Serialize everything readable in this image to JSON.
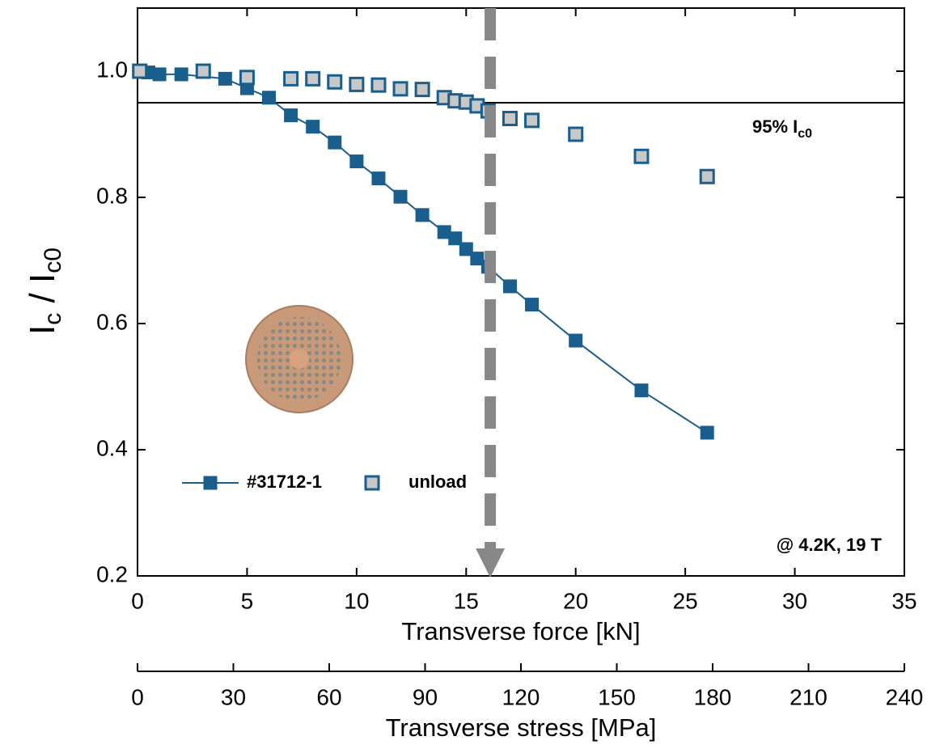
{
  "chart_data": {
    "type": "scatter",
    "x_label": "Transverse force [kN]",
    "y_label_parts": [
      "I",
      "c",
      " / I",
      "c0"
    ],
    "x2_label": "Transverse stress [MPa]",
    "xlim": [
      0,
      35
    ],
    "xticks": [
      0,
      5,
      10,
      15,
      20,
      25,
      30,
      35
    ],
    "ylim": [
      0.2,
      1.1
    ],
    "yticks": [
      0.2,
      0.4,
      0.6,
      0.8,
      {
        "value": 1,
        "label": "1.0"
      }
    ],
    "x2lim": [
      0,
      240
    ],
    "x2ticks": [
      0,
      30,
      60,
      90,
      120,
      150,
      180,
      210,
      240
    ],
    "legend": "lower left",
    "series": [
      {
        "name": "#31712-1",
        "color": "#1a5e8e",
        "line": true,
        "x": [
          0.1,
          0.5,
          1,
          2,
          4,
          5,
          6,
          7,
          8,
          9,
          10,
          11,
          12,
          13,
          14,
          14.5,
          15,
          15.5,
          16,
          17,
          18,
          20,
          23,
          26
        ],
        "values": [
          1.0,
          0.998,
          0.995,
          0.995,
          0.988,
          0.973,
          0.958,
          0.93,
          0.912,
          0.887,
          0.857,
          0.83,
          0.801,
          0.772,
          0.745,
          0.735,
          0.718,
          0.703,
          0.69,
          0.659,
          0.63,
          0.573,
          0.494,
          0.427
        ]
      },
      {
        "name": "unload",
        "color": "#c8c8c8",
        "edge": "#1a5e8e",
        "line": false,
        "x": [
          0.1,
          3,
          5,
          7,
          8,
          9,
          10,
          11,
          12,
          13,
          14,
          14.5,
          15,
          15.5,
          16,
          17,
          18,
          20,
          23,
          26
        ],
        "values": [
          1.0,
          1.0,
          0.99,
          0.988,
          0.988,
          0.983,
          0.979,
          0.978,
          0.972,
          0.971,
          0.958,
          0.953,
          0.951,
          0.945,
          0.937,
          0.925,
          0.922,
          0.9,
          0.865,
          0.833
        ]
      }
    ],
    "threshold": 0.95,
    "threshold_label": "95% I",
    "threshold_label_sub": "c0",
    "arrow_x": 16.1,
    "condition_label": "@ 4.2K, 19 T"
  }
}
